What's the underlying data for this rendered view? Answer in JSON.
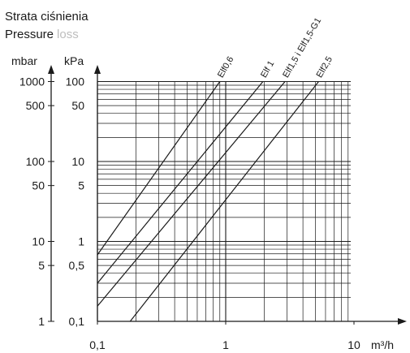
{
  "chart_data": {
    "type": "line",
    "title": "Strata ciśnienia",
    "subtitle_main": "Pressure",
    "subtitle_faded": "loss",
    "subtitle_faded_color": "#bdbdbd",
    "x_scale": "log",
    "y_scale": "log",
    "xlim": [
      0.1,
      15
    ],
    "ylim": [
      0.1,
      100
    ],
    "x_ticks": [
      {
        "value": 0.1,
        "label": "0,1"
      },
      {
        "value": 1,
        "label": "1"
      },
      {
        "value": 10,
        "label": "10"
      }
    ],
    "x_unit": "m³/h",
    "y_ticks_kpa": [
      {
        "value": 100,
        "label": "100"
      },
      {
        "value": 50,
        "label": "50"
      },
      {
        "value": 10,
        "label": "10"
      },
      {
        "value": 5,
        "label": "5"
      },
      {
        "value": 1,
        "label": "1"
      },
      {
        "value": 0.5,
        "label": "0,5"
      },
      {
        "value": 0.1,
        "label": "0,1"
      }
    ],
    "y_ticks_mbar": [
      {
        "value": 100,
        "label": "1000"
      },
      {
        "value": 50,
        "label": "500"
      },
      {
        "value": 10,
        "label": "100"
      },
      {
        "value": 5,
        "label": "50"
      },
      {
        "value": 1,
        "label": "10"
      },
      {
        "value": 0.5,
        "label": "5"
      },
      {
        "value": 0.1,
        "label": "1"
      }
    ],
    "y_unit_kpa": "kPa",
    "y_unit_mbar": "mbar",
    "grid": true,
    "series": [
      {
        "name": "Elf0,6",
        "points": [
          [
            0.1,
            0.68
          ],
          [
            0.9,
            100
          ]
        ]
      },
      {
        "name": "Elf 1",
        "points": [
          [
            0.1,
            0.3
          ],
          [
            1.95,
            100
          ]
        ]
      },
      {
        "name": "Elf1,5 i Elf1,5-G1",
        "points": [
          [
            0.1,
            0.155
          ],
          [
            2.9,
            100
          ]
        ]
      },
      {
        "name": "Elf2,5",
        "points": [
          [
            0.18,
            0.1
          ],
          [
            5.3,
            100
          ]
        ]
      }
    ],
    "line_color": "#1a1a1a"
  }
}
